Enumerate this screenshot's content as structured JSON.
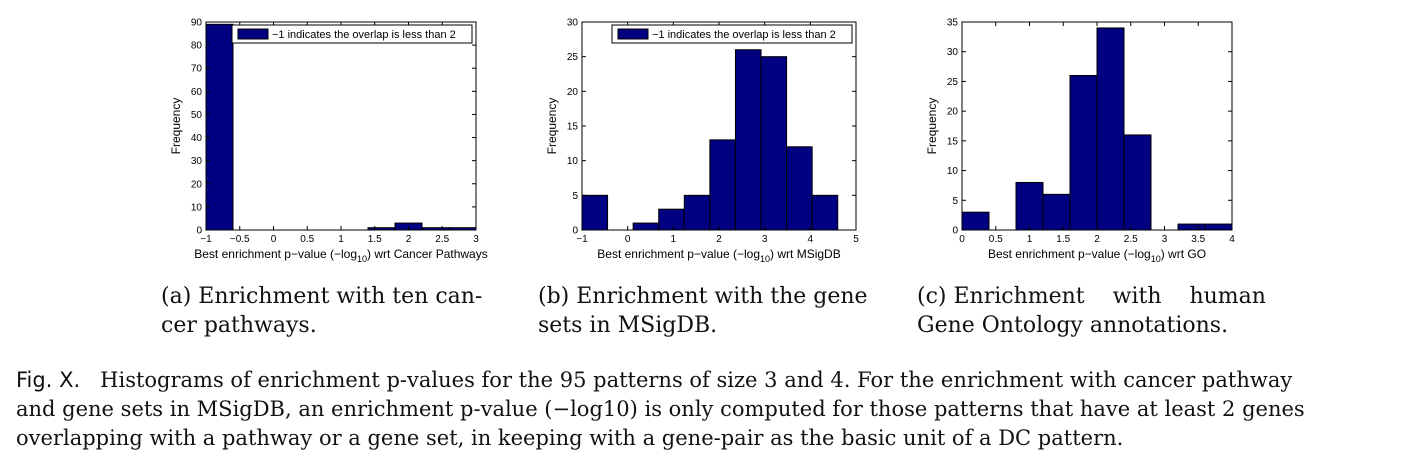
{
  "chart_data": [
    {
      "type": "bar",
      "subcaption": "(a) Enrichment with ten cancer pathways.",
      "xlabel": "Best enrichment p−value (−log",
      "xlabel_sub": "10",
      "xlabel_suffix": ") wrt Cancer Pathways",
      "ylabel": "Frequency",
      "legend": "−1 indicates the overlap is less than 2",
      "legend_position": "top-right",
      "xlim": [
        -1,
        3
      ],
      "ylim": [
        0,
        90
      ],
      "xticks": [
        -1,
        -0.5,
        0,
        0.5,
        1,
        1.5,
        2,
        2.5,
        3
      ],
      "xtick_labels": [
        "−1",
        "−0.5",
        "0",
        "0.5",
        "1",
        "1.5",
        "2",
        "2.5",
        "3"
      ],
      "yticks": [
        0,
        10,
        20,
        30,
        40,
        50,
        60,
        70,
        80,
        90
      ],
      "ytick_labels": [
        "0",
        "10",
        "20",
        "30",
        "40",
        "50",
        "60",
        "70",
        "80",
        "90"
      ],
      "bin_edges": [
        -1,
        -0.6,
        -0.2,
        0.2,
        0.6,
        1.0,
        1.4,
        1.8,
        2.2,
        2.6,
        3.0
      ],
      "values": [
        89,
        0,
        0,
        0,
        0,
        0,
        1,
        3,
        1,
        1
      ],
      "color": "#000080"
    },
    {
      "type": "bar",
      "subcaption": "(b) Enrichment with the gene sets in MSigDB.",
      "xlabel": "Best enrichment p−value (−log",
      "xlabel_sub": "10",
      "xlabel_suffix": ") wrt MSigDB",
      "ylabel": "Frequency",
      "legend": "−1 indicates the overlap is less than 2",
      "legend_position": "top-right",
      "xlim": [
        -1,
        5
      ],
      "ylim": [
        0,
        30
      ],
      "xticks": [
        -1,
        0,
        1,
        2,
        3,
        4,
        5
      ],
      "xtick_labels": [
        "−1",
        "0",
        "1",
        "2",
        "3",
        "4",
        "5"
      ],
      "yticks": [
        0,
        5,
        10,
        15,
        20,
        25,
        30
      ],
      "ytick_labels": [
        "0",
        "5",
        "10",
        "15",
        "20",
        "25",
        "30"
      ],
      "bin_edges": [
        -1,
        -0.44,
        0.12,
        0.68,
        1.24,
        1.8,
        2.36,
        2.92,
        3.48,
        4.04,
        4.6
      ],
      "values": [
        5,
        0,
        1,
        3,
        5,
        13,
        26,
        25,
        12,
        5
      ],
      "color": "#000080"
    },
    {
      "type": "bar",
      "subcaption": "(c) Enrichment with human Gene Ontology annotations.",
      "xlabel": "Best enrichment p−value (−log",
      "xlabel_sub": "10",
      "xlabel_suffix": ") wrt GO",
      "ylabel": "Frequency",
      "legend": "",
      "xlim": [
        0,
        4
      ],
      "ylim": [
        0,
        35
      ],
      "xticks": [
        0,
        0.5,
        1,
        1.5,
        2,
        2.5,
        3,
        3.5,
        4
      ],
      "xtick_labels": [
        "0",
        "0.5",
        "1",
        "1.5",
        "2",
        "2.5",
        "3",
        "3.5",
        "4"
      ],
      "yticks": [
        0,
        5,
        10,
        15,
        20,
        25,
        30,
        35
      ],
      "ytick_labels": [
        "0",
        "5",
        "10",
        "15",
        "20",
        "25",
        "30",
        "35"
      ],
      "bin_edges": [
        0,
        0.4,
        0.8,
        1.2,
        1.6,
        2.0,
        2.4,
        2.8,
        3.2,
        3.6,
        4.0
      ],
      "values": [
        3,
        0,
        8,
        6,
        26,
        34,
        16,
        0,
        1,
        1
      ],
      "color": "#000080"
    }
  ],
  "captions": {
    "a_line1": "(a) Enrichment with ten can-",
    "a_line2": "cer pathways.",
    "b_line1": "(b) Enrichment with the gene",
    "b_line2": "sets in MSigDB.",
    "c_line1": "(c) Enrichment    with    human",
    "c_line2": "Gene Ontology annotations."
  },
  "figure_caption": {
    "label": "Fig. X.",
    "line1": "Histograms of enrichment p-values for the 95 patterns of size 3 and 4. For the enrichment with cancer pathway",
    "line2": "and gene sets in MSigDB, an enrichment p-value (−log10) is only computed for those patterns that have at least 2 genes",
    "line3": "overlapping with a pathway or a gene set, in keeping with a gene-pair as the basic unit of a DC pattern."
  }
}
